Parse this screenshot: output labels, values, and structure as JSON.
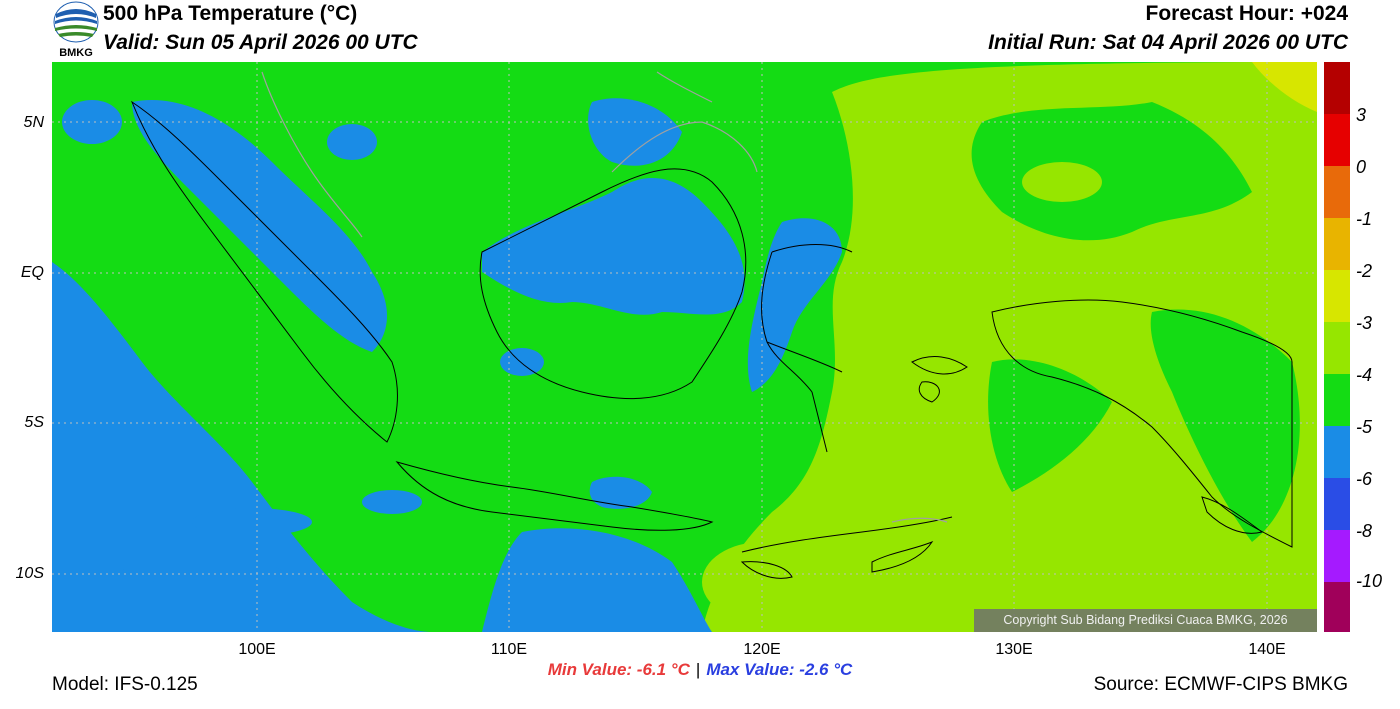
{
  "header": {
    "title": "500 hPa Temperature (°C)",
    "valid": "Valid: Sun 05 April 2026 00 UTC",
    "forecast_hour": "Forecast Hour: +024",
    "initial_run": "Initial Run: Sat 04 April 2026 00 UTC",
    "logo_text": "BMKG"
  },
  "axes": {
    "lat_labels": [
      "5N",
      "EQ",
      "5S",
      "10S"
    ],
    "lon_labels": [
      "100E",
      "110E",
      "120E",
      "130E",
      "140E"
    ]
  },
  "colorbar": {
    "labels": [
      "3",
      "0",
      "-1",
      "-2",
      "-3",
      "-4",
      "-5",
      "-6",
      "-8",
      "-10"
    ],
    "colors": [
      "#b40000",
      "#e60000",
      "#ff1e1e",
      "#e86a0a",
      "#e8b400",
      "#d7e600",
      "#96e600",
      "#14dc14",
      "#1a8ce6",
      "#2a4de6",
      "#a51aff",
      "#a0005a"
    ]
  },
  "minmax": {
    "min": "Min Value: -6.1 °C",
    "separator": "|",
    "max": "Max Value: -2.6 °C"
  },
  "footer": {
    "model": "Model: IFS-0.125",
    "source": "Source: ECMWF-CIPS BMKG",
    "copyright": "Copyright Sub Bidang Prediksi Cuaca BMKG, 2026"
  },
  "map_colors": {
    "green": "#14dc14",
    "blue": "#1a8ce6",
    "lightgreen": "#96e600",
    "yellow": "#d7e600"
  }
}
